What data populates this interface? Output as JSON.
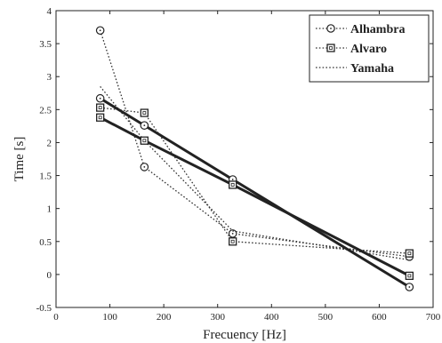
{
  "chart_data": {
    "type": "line",
    "title": "",
    "xlabel": "Frecuency [Hz]",
    "ylabel": "Time [s]",
    "xlim": [
      0,
      700
    ],
    "ylim": [
      -0.5,
      4
    ],
    "xticks": [
      "0",
      "100",
      "200",
      "300",
      "400",
      "500",
      "600",
      "700"
    ],
    "yticks": [
      "-0.5",
      "0",
      "0.5",
      "1",
      "1.5",
      "2",
      "2.5",
      "3",
      "3.5",
      "4"
    ],
    "grid": false,
    "legend_position": "top-right",
    "series": [
      {
        "name": "Alhambra",
        "marker": "circle",
        "style": "dotted",
        "x": [
          82,
          164,
          328,
          656
        ],
        "y": [
          3.7,
          1.63,
          0.62,
          0.27
        ]
      },
      {
        "name": "Alvaro",
        "marker": "square",
        "style": "dotted",
        "x": [
          82,
          164,
          328,
          656
        ],
        "y": [
          2.53,
          2.45,
          0.5,
          0.32
        ]
      },
      {
        "name": "Yamaha",
        "marker": "none",
        "style": "dotted",
        "x": [
          82,
          164,
          328,
          656
        ],
        "y": [
          2.85,
          2.03,
          0.66,
          0.22
        ]
      }
    ],
    "fits": [
      {
        "of": "Alhambra",
        "marker": "circle",
        "style": "solid",
        "x": [
          82,
          164,
          328,
          656
        ],
        "y": [
          2.67,
          2.26,
          1.44,
          -0.19
        ]
      },
      {
        "of": "Alvaro",
        "marker": "square",
        "style": "solid",
        "x": [
          82,
          164,
          328,
          656
        ],
        "y": [
          2.38,
          2.03,
          1.36,
          -0.02
        ]
      }
    ]
  }
}
